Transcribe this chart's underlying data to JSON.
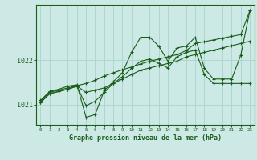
{
  "title": "Graphe pression niveau de la mer (hPa)",
  "xlabel_ticks": [
    "0",
    "1",
    "2",
    "3",
    "4",
    "5",
    "6",
    "7",
    "8",
    "9",
    "10",
    "11",
    "12",
    "13",
    "14",
    "15",
    "16",
    "17",
    "18",
    "19",
    "20",
    "21",
    "22",
    "23"
  ],
  "yticks": [
    1021,
    1022
  ],
  "ylim": [
    1020.55,
    1023.25
  ],
  "xlim": [
    -0.5,
    23.5
  ],
  "bg_color": "#cce9e5",
  "grid_color": "#aad4cf",
  "line_color": "#1a5c1a",
  "line1": [
    1021.1,
    1021.3,
    1021.35,
    1021.42,
    1021.45,
    1020.72,
    1020.78,
    1021.32,
    1021.52,
    1021.72,
    1022.18,
    1022.52,
    1022.52,
    1022.32,
    1021.98,
    1022.28,
    1022.32,
    1022.52,
    1021.82,
    1021.58,
    1021.58,
    1021.58,
    1022.12,
    1023.12
  ],
  "line2": [
    1021.08,
    1021.28,
    1021.33,
    1021.38,
    1021.43,
    1021.48,
    1021.55,
    1021.65,
    1021.72,
    1021.79,
    1021.85,
    1021.92,
    1021.98,
    1022.03,
    1022.08,
    1022.13,
    1022.22,
    1022.38,
    1022.42,
    1022.46,
    1022.5,
    1022.54,
    1022.58,
    1023.12
  ],
  "line3": [
    1021.05,
    1021.25,
    1021.3,
    1021.35,
    1021.42,
    1020.98,
    1021.08,
    1021.28,
    1021.48,
    1021.63,
    1021.82,
    1021.98,
    1022.03,
    1021.93,
    1021.83,
    1022.08,
    1022.18,
    1022.23,
    1021.68,
    1021.48,
    1021.48,
    1021.48,
    1021.48,
    1021.48
  ],
  "line4": [
    1021.05,
    1021.25,
    1021.3,
    1021.35,
    1021.42,
    1021.28,
    1021.33,
    1021.38,
    1021.48,
    1021.58,
    1021.68,
    1021.78,
    1021.83,
    1021.88,
    1021.93,
    1021.98,
    1022.08,
    1022.13,
    1022.18,
    1022.23,
    1022.28,
    1022.33,
    1022.38,
    1022.43
  ],
  "marker": "+"
}
